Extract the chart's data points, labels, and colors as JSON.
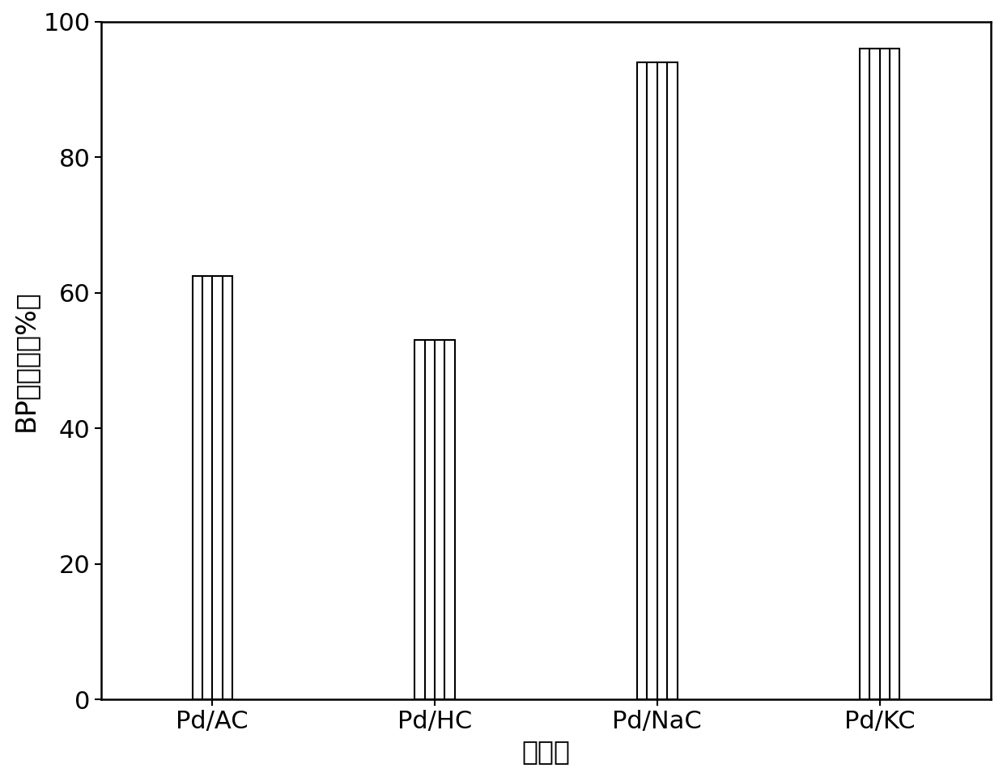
{
  "categories": [
    "Pd/AC",
    "Pd/HC",
    "Pd/NaC",
    "Pd/KC"
  ],
  "values": [
    62.5,
    53.0,
    94.0,
    96.0
  ],
  "xlabel": "偶化剂",
  "ylabel": "BP选择性（%）",
  "ylim": [
    0,
    100
  ],
  "yticks": [
    0,
    20,
    40,
    60,
    80,
    100
  ],
  "bar_width": 0.18,
  "bar_facecolor": "white",
  "bar_edgecolor": "black",
  "background_color": "white",
  "xlabel_fontsize": 24,
  "ylabel_fontsize": 24,
  "tick_fontsize": 22,
  "spine_linewidth": 1.8,
  "n_inner_lines": 3,
  "line_color": "black",
  "line_width": 1.5
}
